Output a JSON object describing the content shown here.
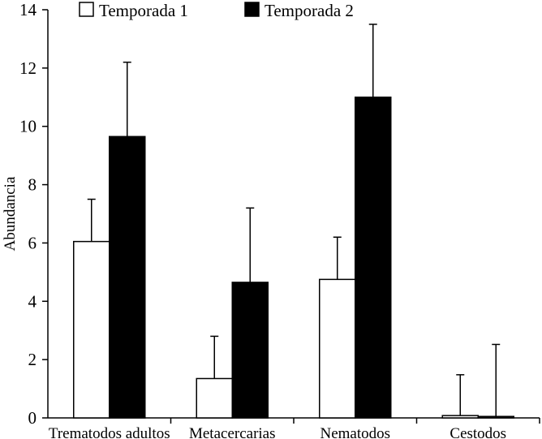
{
  "chart_data": {
    "type": "bar",
    "title": "",
    "xlabel": "",
    "ylabel": "Abundancia",
    "ylim": [
      0,
      14
    ],
    "yticks": [
      "0",
      "2",
      "4",
      "6",
      "8",
      "10",
      "12",
      "14"
    ],
    "grid": false,
    "legend_position": "top",
    "categories": [
      "Trematodos adultos",
      "Metacercarias",
      "Nematodos",
      "Cestodos"
    ],
    "series": [
      {
        "name": "Temporada 1",
        "fill": "#ffffff",
        "values": [
          6.05,
          1.35,
          4.75,
          0.08
        ],
        "error_upper": [
          7.5,
          2.8,
          6.2,
          1.48
        ]
      },
      {
        "name": "Temporada 2",
        "fill": "#000000",
        "values": [
          9.65,
          4.65,
          11.0,
          0.05
        ],
        "error_upper": [
          12.2,
          7.2,
          13.5,
          2.52
        ]
      }
    ]
  }
}
